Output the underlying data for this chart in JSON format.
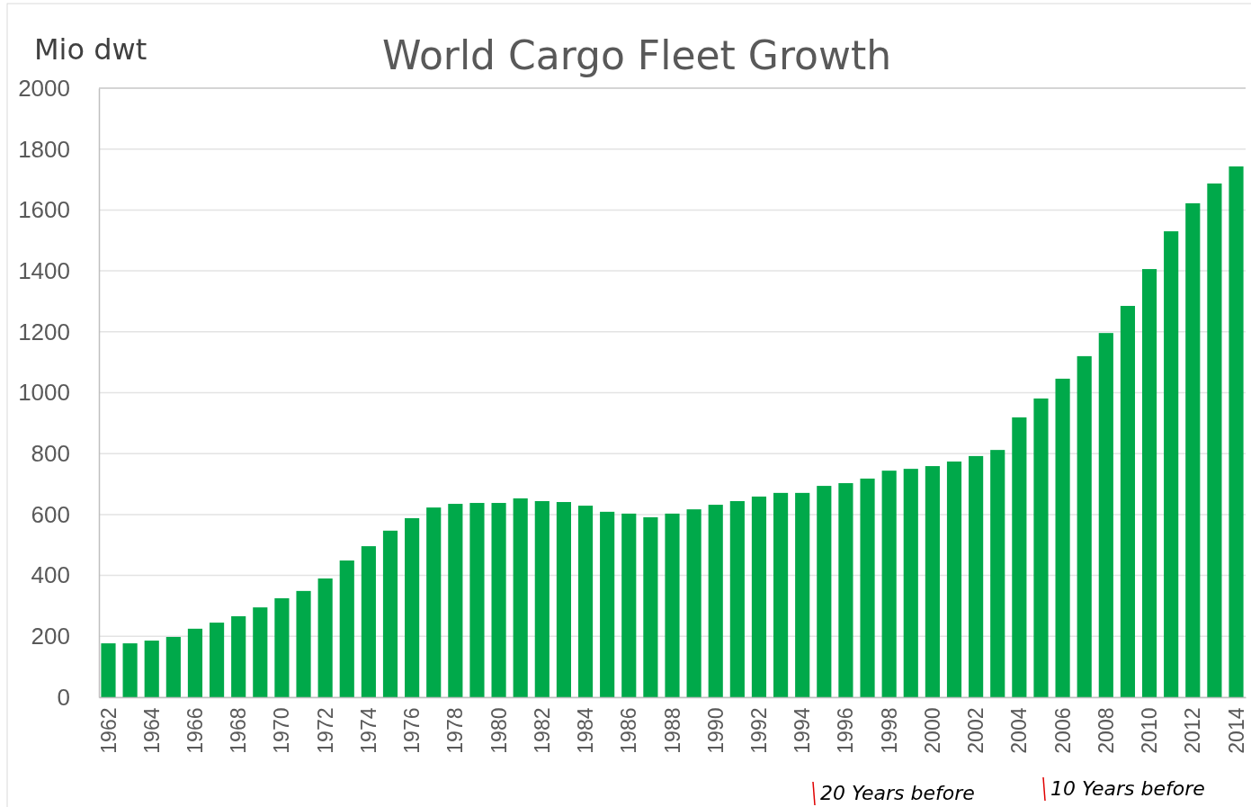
{
  "chart_data": {
    "type": "bar",
    "title": "World Cargo Fleet Growth",
    "ylabel": "Mio dwt",
    "categories": [
      "1962",
      null,
      "1964",
      null,
      "1966",
      null,
      "1968",
      null,
      "1970",
      null,
      "1972",
      null,
      "1974",
      null,
      "1976",
      null,
      "1978",
      null,
      "1980",
      null,
      "1982",
      null,
      "1984",
      null,
      "1986",
      null,
      "1988",
      null,
      "1990",
      null,
      "1992",
      null,
      "1994",
      null,
      "1996",
      null,
      "1998",
      null,
      "2000",
      null,
      "2002",
      null,
      "2004",
      null,
      "2006",
      null,
      "2008",
      null,
      "2010",
      null,
      "2012",
      null,
      "2014"
    ],
    "values": [
      177,
      177,
      186,
      198,
      225,
      245,
      266,
      295,
      325,
      349,
      390,
      449,
      496,
      547,
      588,
      623,
      635,
      638,
      638,
      653,
      644,
      641,
      629,
      609,
      603,
      591,
      603,
      617,
      632,
      644,
      659,
      671,
      671,
      694,
      703,
      718,
      744,
      750,
      759,
      774,
      792,
      812,
      919,
      981,
      1046,
      1120,
      1196,
      1285,
      1406,
      1530,
      1622,
      1687,
      1743
    ],
    "color": "#00a94a",
    "ylim": [
      0,
      2000
    ],
    "yticks": [
      0,
      200,
      400,
      600,
      800,
      1000,
      1200,
      1400,
      1600,
      1800,
      2000
    ],
    "grid": "y",
    "annotations": [
      "20 Years before",
      "10 Years before"
    ]
  }
}
